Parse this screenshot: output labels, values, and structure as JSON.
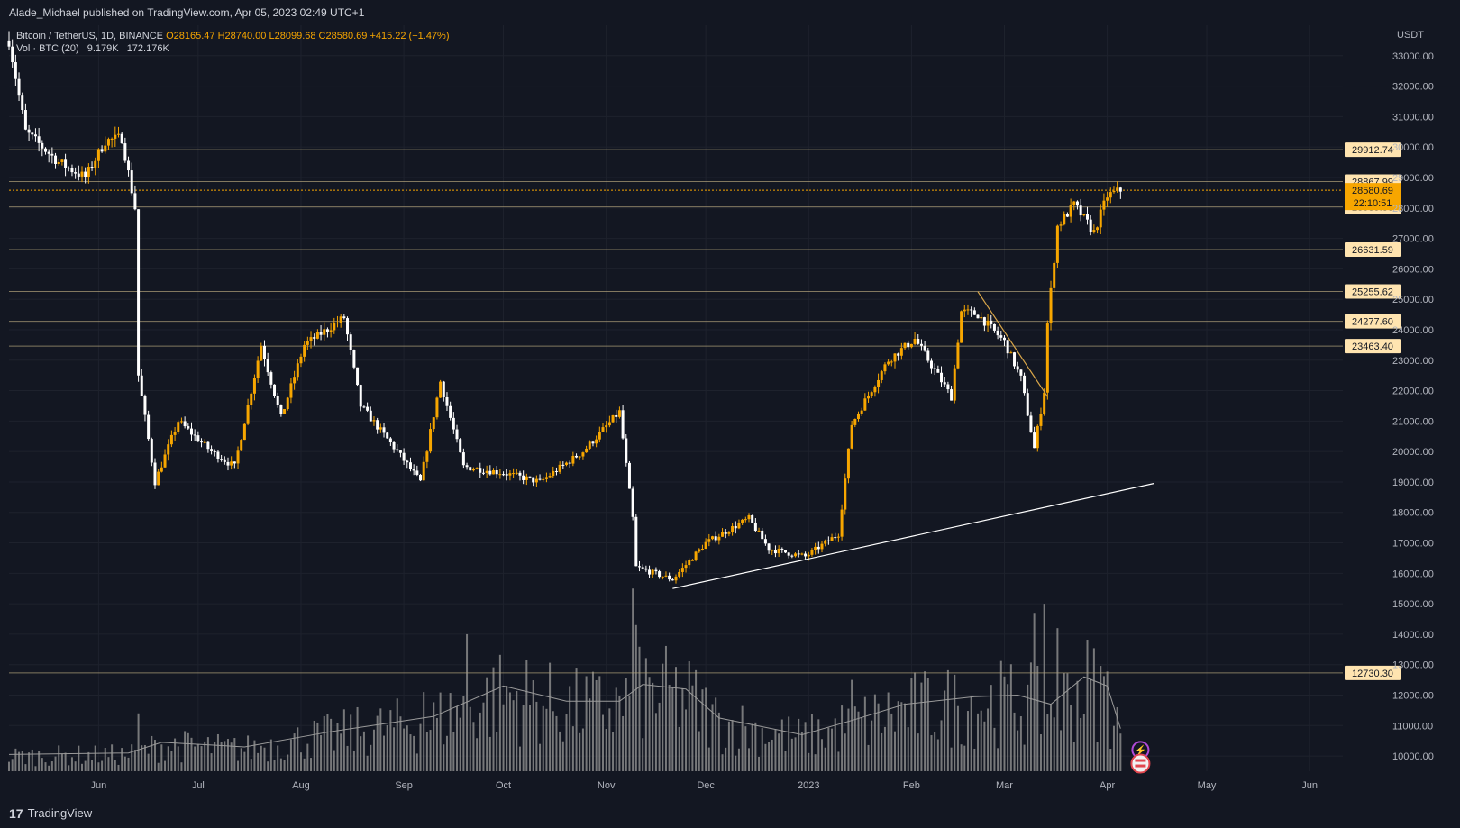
{
  "header": {
    "publisher": "Alade_Michael published on TradingView.com, Apr 05, 2023 02:49 UTC+1"
  },
  "legend": {
    "symbol": "Bitcoin / TetherUS, 1D, BINANCE",
    "open": "O28165.47",
    "high": "H28740.00",
    "low": "L28099.68",
    "close": "C28580.69",
    "change": "+415.22 (+1.47%)",
    "volume_label": "Vol · BTC (20)",
    "volume_value": "9.179K",
    "volume_ma": "172.176K"
  },
  "footer": {
    "brand": "TradingView",
    "logo": "17"
  },
  "chart_data": {
    "type": "candlestick",
    "currency": "USDT",
    "ylim": [
      9500,
      34000
    ],
    "y_ticks": [
      10000,
      11000,
      12000,
      13000,
      14000,
      15000,
      16000,
      17000,
      18000,
      19000,
      20000,
      21000,
      22000,
      23000,
      24000,
      25000,
      26000,
      27000,
      28000,
      29000,
      30000,
      31000,
      32000,
      33000
    ],
    "y_tick_labels": [
      "10000.00",
      "11000.00",
      "12000.00",
      "13000.00",
      "14000.00",
      "15000.00",
      "16000.00",
      "17000.00",
      "18000.00",
      "19000.00",
      "20000.00",
      "21000.00",
      "22000.00",
      "23000.00",
      "24000.00",
      "25000.00",
      "26000.00",
      "27000.00",
      "28000.00",
      "29000.00",
      "30000.00",
      "31000.00",
      "32000.00",
      "33000.00"
    ],
    "x_labels": [
      "Jun",
      "Jul",
      "Aug",
      "Sep",
      "Oct",
      "Nov",
      "Dec",
      "2023",
      "Feb",
      "Mar",
      "Apr",
      "May",
      "Jun"
    ],
    "x_label_dates": [
      "2022-06-01",
      "2022-07-01",
      "2022-08-01",
      "2022-09-01",
      "2022-10-01",
      "2022-11-01",
      "2022-12-01",
      "2023-01-01",
      "2023-02-01",
      "2023-03-01",
      "2023-04-01",
      "2023-05-01",
      "2023-06-01"
    ],
    "start_date": "2022-05-05",
    "end_date": "2023-06-11",
    "horizontal_levels": [
      {
        "value": 29912.74,
        "label": "29912.74"
      },
      {
        "value": 28867.99,
        "label": "28867.99"
      },
      {
        "value": 28035.8,
        "label": "28035.80"
      },
      {
        "value": 26631.59,
        "label": "26631.59"
      },
      {
        "value": 25255.62,
        "label": "25255.62"
      },
      {
        "value": 24277.6,
        "label": "24277.60"
      },
      {
        "value": 23463.4,
        "label": "23463.40"
      },
      {
        "value": 12730.3,
        "label": "12730.30"
      }
    ],
    "last_price": {
      "value": 28580.69,
      "label": "28580.69",
      "countdown": "22:10:51"
    },
    "trend_lines": [
      {
        "from": {
          "date": "2022-11-21",
          "value": 15500
        },
        "to": {
          "date": "2023-04-15",
          "value": 18950
        },
        "color": "#ffffff"
      },
      {
        "from": {
          "date": "2023-02-21",
          "value": 25250
        },
        "to": {
          "date": "2023-03-14",
          "value": 21800
        },
        "color": "#d9a649"
      }
    ],
    "key_points": [
      {
        "date": "2022-05-05",
        "value": 33500
      },
      {
        "date": "2022-05-10",
        "value": 30500
      },
      {
        "date": "2022-05-20",
        "value": 29500
      },
      {
        "date": "2022-05-28",
        "value": 29000
      },
      {
        "date": "2022-06-03",
        "value": 30200
      },
      {
        "date": "2022-06-08",
        "value": 30300
      },
      {
        "date": "2022-06-12",
        "value": 28000
      },
      {
        "date": "2022-06-13",
        "value": 22500
      },
      {
        "date": "2022-06-18",
        "value": 19000
      },
      {
        "date": "2022-06-25",
        "value": 21000
      },
      {
        "date": "2022-07-05",
        "value": 20000
      },
      {
        "date": "2022-07-12",
        "value": 19500
      },
      {
        "date": "2022-07-20",
        "value": 23500
      },
      {
        "date": "2022-07-26",
        "value": 21100
      },
      {
        "date": "2022-08-02",
        "value": 23500
      },
      {
        "date": "2022-08-14",
        "value": 24400
      },
      {
        "date": "2022-08-19",
        "value": 21500
      },
      {
        "date": "2022-08-30",
        "value": 20000
      },
      {
        "date": "2022-09-06",
        "value": 19000
      },
      {
        "date": "2022-09-12",
        "value": 22300
      },
      {
        "date": "2022-09-19",
        "value": 19500
      },
      {
        "date": "2022-10-01",
        "value": 19300
      },
      {
        "date": "2022-10-12",
        "value": 19000
      },
      {
        "date": "2022-10-25",
        "value": 20000
      },
      {
        "date": "2022-11-05",
        "value": 21300
      },
      {
        "date": "2022-11-09",
        "value": 17800
      },
      {
        "date": "2022-11-10",
        "value": 16200
      },
      {
        "date": "2022-11-21",
        "value": 15800
      },
      {
        "date": "2022-12-01",
        "value": 17000
      },
      {
        "date": "2022-12-14",
        "value": 17800
      },
      {
        "date": "2022-12-20",
        "value": 16800
      },
      {
        "date": "2022-12-31",
        "value": 16550
      },
      {
        "date": "2023-01-10",
        "value": 17300
      },
      {
        "date": "2023-01-14",
        "value": 20900
      },
      {
        "date": "2023-01-25",
        "value": 23000
      },
      {
        "date": "2023-02-02",
        "value": 23700
      },
      {
        "date": "2023-02-13",
        "value": 21800
      },
      {
        "date": "2023-02-16",
        "value": 24600
      },
      {
        "date": "2023-02-21",
        "value": 24500
      },
      {
        "date": "2023-03-01",
        "value": 23600
      },
      {
        "date": "2023-03-06",
        "value": 22400
      },
      {
        "date": "2023-03-10",
        "value": 20100
      },
      {
        "date": "2023-03-13",
        "value": 22000
      },
      {
        "date": "2023-03-14",
        "value": 24200
      },
      {
        "date": "2023-03-17",
        "value": 27400
      },
      {
        "date": "2023-03-22",
        "value": 28100
      },
      {
        "date": "2023-03-28",
        "value": 27200
      },
      {
        "date": "2023-04-01",
        "value": 28400
      },
      {
        "date": "2023-04-05",
        "value": 28580
      }
    ],
    "volume_ma_points": [
      {
        "date": "2022-05-05",
        "value": 10050
      },
      {
        "date": "2022-06-10",
        "value": 10100
      },
      {
        "date": "2022-06-20",
        "value": 10450
      },
      {
        "date": "2022-07-15",
        "value": 10300
      },
      {
        "date": "2022-08-10",
        "value": 10800
      },
      {
        "date": "2022-09-10",
        "value": 11300
      },
      {
        "date": "2022-10-01",
        "value": 12300
      },
      {
        "date": "2022-10-20",
        "value": 11800
      },
      {
        "date": "2022-11-05",
        "value": 11800
      },
      {
        "date": "2022-11-12",
        "value": 12350
      },
      {
        "date": "2022-11-25",
        "value": 12200
      },
      {
        "date": "2022-12-05",
        "value": 11250
      },
      {
        "date": "2022-12-30",
        "value": 10700
      },
      {
        "date": "2023-01-15",
        "value": 11200
      },
      {
        "date": "2023-01-30",
        "value": 11700
      },
      {
        "date": "2023-02-20",
        "value": 11950
      },
      {
        "date": "2023-03-05",
        "value": 12000
      },
      {
        "date": "2023-03-15",
        "value": 11700
      },
      {
        "date": "2023-03-25",
        "value": 12600
      },
      {
        "date": "2023-04-01",
        "value": 12300
      },
      {
        "date": "2023-04-05",
        "value": 10900
      }
    ],
    "volume_spikes": [
      {
        "date": "2022-06-13",
        "value": 11400
      },
      {
        "date": "2022-09-07",
        "value": 12100
      },
      {
        "date": "2022-09-20",
        "value": 14000
      },
      {
        "date": "2022-11-09",
        "value": 15500
      },
      {
        "date": "2022-11-10",
        "value": 14300
      },
      {
        "date": "2023-01-14",
        "value": 12500
      },
      {
        "date": "2023-03-10",
        "value": 14700
      },
      {
        "date": "2023-03-13",
        "value": 15000
      },
      {
        "date": "2023-03-17",
        "value": 14200
      }
    ],
    "colors": {
      "background": "#131722",
      "up": "#f7a600",
      "down": "#ffffff",
      "grid": "#1e222d",
      "level": "#b2a27a",
      "level_label_bg": "#ffe4b0",
      "last_price": "#f7a600",
      "volume": "#8a8a8a",
      "volume_ma": "#9a9a9a"
    }
  }
}
